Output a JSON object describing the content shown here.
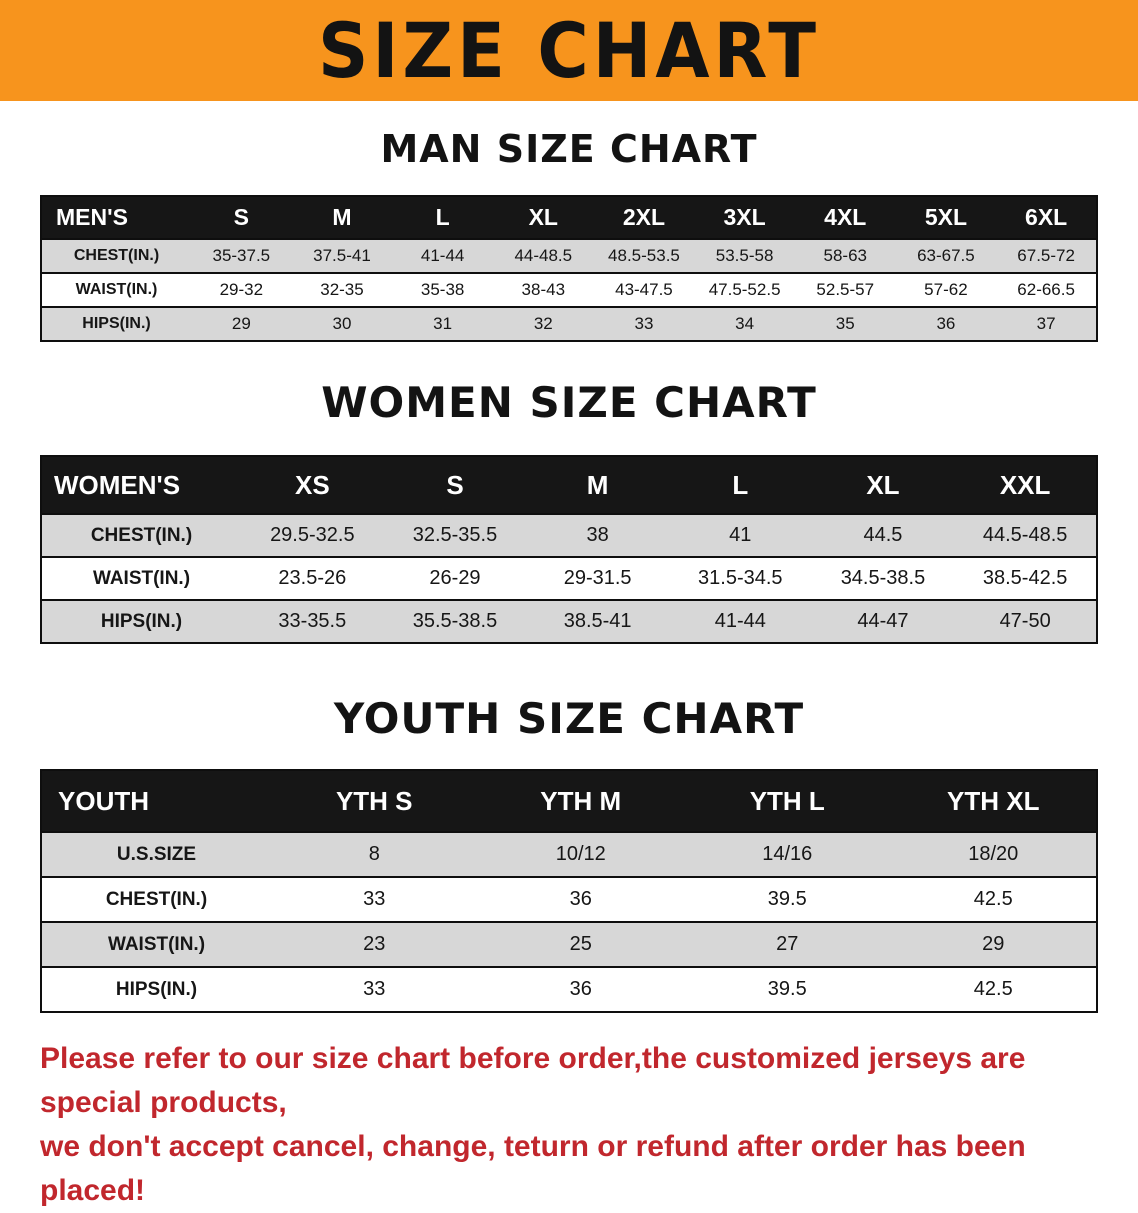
{
  "banner": {
    "title": "SIZE CHART"
  },
  "colors": {
    "banner_bg": "#F7941D",
    "table_header_bg": "#161616",
    "row_shade": "#d7d7d7",
    "footer_text": "#c1272d"
  },
  "men": {
    "heading": "MAN SIZE CHART",
    "table": {
      "label": "MEN'S",
      "columns": [
        "S",
        "M",
        "L",
        "XL",
        "2XL",
        "3XL",
        "4XL",
        "5XL",
        "6XL"
      ],
      "rows": [
        {
          "label": "CHEST(IN.)",
          "values": [
            "35-37.5",
            "37.5-41",
            "41-44",
            "44-48.5",
            "48.5-53.5",
            "53.5-58",
            "58-63",
            "63-67.5",
            "67.5-72"
          ]
        },
        {
          "label": "WAIST(IN.)",
          "values": [
            "29-32",
            "32-35",
            "35-38",
            "38-43",
            "43-47.5",
            "47.5-52.5",
            "52.5-57",
            "57-62",
            "62-66.5"
          ]
        },
        {
          "label": "HIPS(IN.)",
          "values": [
            "29",
            "30",
            "31",
            "32",
            "33",
            "34",
            "35",
            "36",
            "37"
          ]
        }
      ]
    }
  },
  "women": {
    "heading": "WOMEN SIZE CHART",
    "table": {
      "label": "WOMEN'S",
      "columns": [
        "XS",
        "S",
        "M",
        "L",
        "XL",
        "XXL"
      ],
      "rows": [
        {
          "label": "CHEST(IN.)",
          "values": [
            "29.5-32.5",
            "32.5-35.5",
            "38",
            "41",
            "44.5",
            "44.5-48.5"
          ]
        },
        {
          "label": "WAIST(IN.)",
          "values": [
            "23.5-26",
            "26-29",
            "29-31.5",
            "31.5-34.5",
            "34.5-38.5",
            "38.5-42.5"
          ]
        },
        {
          "label": "HIPS(IN.)",
          "values": [
            "33-35.5",
            "35.5-38.5",
            "38.5-41",
            "41-44",
            "44-47",
            "47-50"
          ]
        }
      ]
    }
  },
  "youth": {
    "heading": "YOUTH SIZE CHART",
    "table": {
      "label": "YOUTH",
      "columns": [
        "YTH S",
        "YTH M",
        "YTH L",
        "YTH XL"
      ],
      "rows": [
        {
          "label": "U.S.SIZE",
          "values": [
            "8",
            "10/12",
            "14/16",
            "18/20"
          ]
        },
        {
          "label": "CHEST(IN.)",
          "values": [
            "33",
            "36",
            "39.5",
            "42.5"
          ]
        },
        {
          "label": "WAIST(IN.)",
          "values": [
            "23",
            "25",
            "27",
            "29"
          ]
        },
        {
          "label": "HIPS(IN.)",
          "values": [
            "33",
            "36",
            "39.5",
            "42.5"
          ]
        }
      ]
    }
  },
  "footer": {
    "lines": [
      "Please refer to our size chart before order,the customized jerseys are special products,",
      "we don't accept cancel, change, teturn or refund after order has been placed!"
    ]
  }
}
